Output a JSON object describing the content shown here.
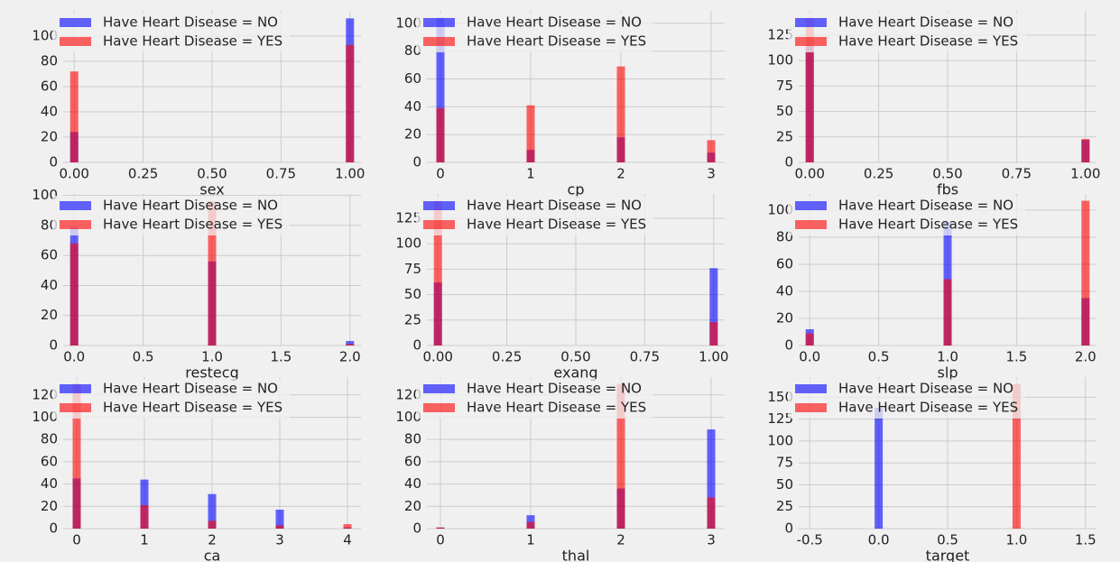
{
  "chart_data": [
    {
      "type": "bar",
      "xlabel": "sex",
      "x": [
        0,
        1
      ],
      "xlim": [
        -0.04,
        1.04
      ],
      "xticks": [
        {
          "value": 0,
          "label": "0.00"
        },
        {
          "value": 0.25,
          "label": "0.25"
        },
        {
          "value": 0.5,
          "label": "0.50"
        },
        {
          "value": 0.75,
          "label": "0.75"
        },
        {
          "value": 1,
          "label": "1.00"
        }
      ],
      "ylim": [
        0,
        120
      ],
      "yticks": [
        0,
        20,
        40,
        60,
        80,
        100
      ],
      "grid": true,
      "legend": "upper left",
      "series": [
        {
          "name": "Have Heart Disease = NO",
          "color": "#0000ff",
          "values": [
            24,
            114
          ]
        },
        {
          "name": "Have Heart Disease = YES",
          "color": "#ff0000",
          "values": [
            72,
            93
          ]
        }
      ]
    },
    {
      "type": "bar",
      "xlabel": "cp",
      "x": [
        0,
        1,
        2,
        3
      ],
      "xlim": [
        -0.15,
        3.15
      ],
      "xticks": [
        0,
        1,
        2,
        3
      ],
      "ylim": [
        0,
        109
      ],
      "yticks": [
        0,
        20,
        40,
        60,
        80,
        100
      ],
      "grid": true,
      "legend": "upper left",
      "series": [
        {
          "name": "Have Heart Disease = NO",
          "color": "#0000ff",
          "values": [
            104,
            9,
            18,
            7
          ]
        },
        {
          "name": "Have Heart Disease = YES",
          "color": "#ff0000",
          "values": [
            39,
            41,
            69,
            16
          ]
        }
      ]
    },
    {
      "type": "bar",
      "xlabel": "fbs",
      "x": [
        0,
        1
      ],
      "xlim": [
        -0.04,
        1.04
      ],
      "xticks": [
        {
          "value": 0,
          "label": "0.00"
        },
        {
          "value": 0.25,
          "label": "0.25"
        },
        {
          "value": 0.5,
          "label": "0.50"
        },
        {
          "value": 0.75,
          "label": "0.75"
        },
        {
          "value": 1,
          "label": "1.00"
        }
      ],
      "ylim": [
        0,
        149
      ],
      "yticks": [
        0,
        25,
        50,
        75,
        100,
        125
      ],
      "grid": true,
      "legend": "upper left",
      "series": [
        {
          "name": "Have Heart Disease = NO",
          "color": "#0000ff",
          "values": [
            116,
            22
          ]
        },
        {
          "name": "Have Heart Disease = YES",
          "color": "#ff0000",
          "values": [
            142,
            23
          ]
        }
      ]
    },
    {
      "type": "bar",
      "xlabel": "restecg",
      "x": [
        0,
        1,
        2
      ],
      "xlim": [
        -0.08,
        2.08
      ],
      "xticks": [
        {
          "value": 0,
          "label": "0.0"
        },
        0.5,
        {
          "value": 1,
          "label": "1.0"
        },
        1.5,
        {
          "value": 2,
          "label": "2.0"
        }
      ],
      "ylim": [
        0,
        101
      ],
      "yticks": [
        0,
        20,
        40,
        60,
        80,
        100
      ],
      "grid": true,
      "legend": "upper left",
      "series": [
        {
          "name": "Have Heart Disease = NO",
          "color": "#0000ff",
          "values": [
            79,
            56,
            3
          ]
        },
        {
          "name": "Have Heart Disease = YES",
          "color": "#ff0000",
          "values": [
            68,
            96,
            1
          ]
        }
      ]
    },
    {
      "type": "bar",
      "xlabel": "exang",
      "x": [
        0,
        1
      ],
      "xlim": [
        -0.04,
        1.04
      ],
      "xticks": [
        {
          "value": 0,
          "label": "0.00"
        },
        {
          "value": 0.25,
          "label": "0.25"
        },
        {
          "value": 0.5,
          "label": "0.50"
        },
        {
          "value": 0.75,
          "label": "0.75"
        },
        {
          "value": 1,
          "label": "1.00"
        }
      ],
      "ylim": [
        0,
        149
      ],
      "yticks": [
        0,
        25,
        50,
        75,
        100,
        125
      ],
      "grid": true,
      "legend": "upper left",
      "series": [
        {
          "name": "Have Heart Disease = NO",
          "color": "#0000ff",
          "values": [
            62,
            76
          ]
        },
        {
          "name": "Have Heart Disease = YES",
          "color": "#ff0000",
          "values": [
            142,
            23
          ]
        }
      ]
    },
    {
      "type": "bar",
      "xlabel": "slp",
      "x": [
        0,
        1,
        2
      ],
      "xlim": [
        -0.08,
        2.08
      ],
      "xticks": [
        {
          "value": 0,
          "label": "0.0"
        },
        0.5,
        {
          "value": 1,
          "label": "1.0"
        },
        1.5,
        {
          "value": 2,
          "label": "2.0"
        }
      ],
      "ylim": [
        0,
        112
      ],
      "yticks": [
        0,
        20,
        40,
        60,
        80,
        100
      ],
      "grid": true,
      "legend": "upper left",
      "series": [
        {
          "name": "Have Heart Disease = NO",
          "color": "#0000ff",
          "values": [
            12,
            91,
            35
          ]
        },
        {
          "name": "Have Heart Disease = YES",
          "color": "#ff0000",
          "values": [
            9,
            49,
            107
          ]
        }
      ]
    },
    {
      "type": "bar",
      "xlabel": "ca",
      "x": [
        0,
        1,
        2,
        3,
        4
      ],
      "xlim": [
        -0.2,
        4.2
      ],
      "xticks": [
        0,
        1,
        2,
        3,
        4
      ],
      "ylim": [
        0,
        136
      ],
      "yticks": [
        0,
        20,
        40,
        60,
        80,
        100,
        120
      ],
      "grid": true,
      "legend": "upper left",
      "series": [
        {
          "name": "Have Heart Disease = NO",
          "color": "#0000ff",
          "values": [
            45,
            44,
            31,
            17,
            1
          ]
        },
        {
          "name": "Have Heart Disease = YES",
          "color": "#ff0000",
          "values": [
            130,
            21,
            7,
            3,
            4
          ]
        }
      ]
    },
    {
      "type": "bar",
      "xlabel": "thal",
      "x": [
        0,
        1,
        2,
        3
      ],
      "xlim": [
        -0.15,
        3.15
      ],
      "xticks": [
        0,
        1,
        2,
        3
      ],
      "ylim": [
        0,
        136
      ],
      "yticks": [
        0,
        20,
        40,
        60,
        80,
        100,
        120
      ],
      "grid": true,
      "legend": "upper left",
      "series": [
        {
          "name": "Have Heart Disease = NO",
          "color": "#0000ff",
          "values": [
            1,
            12,
            36,
            89
          ]
        },
        {
          "name": "Have Heart Disease = YES",
          "color": "#ff0000",
          "values": [
            1,
            6,
            130,
            28
          ]
        }
      ]
    },
    {
      "type": "bar",
      "xlabel": "target",
      "x": [
        0,
        1
      ],
      "xlim": [
        -0.58,
        1.58
      ],
      "xticks": [
        -0.5,
        {
          "value": 0,
          "label": "0.0"
        },
        0.5,
        {
          "value": 1,
          "label": "1.0"
        },
        1.5
      ],
      "ylim": [
        0,
        173
      ],
      "yticks": [
        0,
        25,
        50,
        75,
        100,
        125,
        150
      ],
      "grid": true,
      "legend": "upper left",
      "series": [
        {
          "name": "Have Heart Disease = NO",
          "color": "#0000ff",
          "values": [
            138,
            0
          ]
        },
        {
          "name": "Have Heart Disease = YES",
          "color": "#ff0000",
          "values": [
            0,
            165
          ]
        }
      ]
    }
  ]
}
